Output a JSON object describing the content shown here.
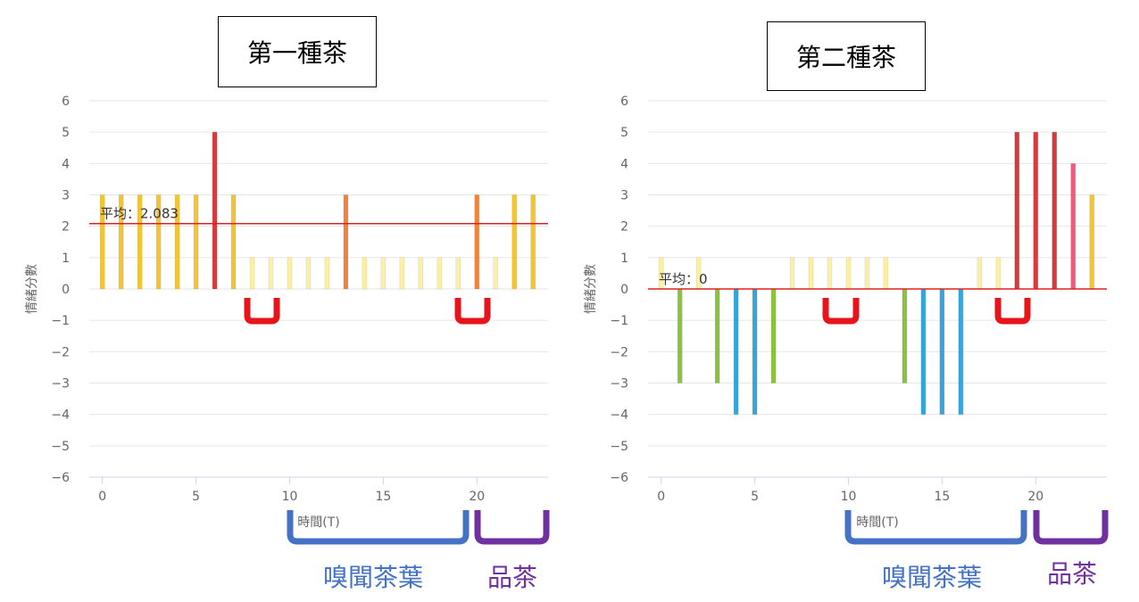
{
  "colors": {
    "very_positive": "#d93a3a",
    "pink": "#ee5c7c",
    "orange": "#f0843c",
    "yellow": "#f5c531",
    "pale_yellow": "#fdf0a6",
    "green": "#8cc33c",
    "blue": "#33a7db",
    "avg_line": "#e02020",
    "bracket_red": "#e8141c",
    "bracket_blue": "#4472c4",
    "bracket_purple": "#7030a0"
  },
  "chart_data": [
    {
      "type": "bar",
      "title": "第一種茶",
      "xlabel": "時間(T)",
      "ylabel": "情緒分數",
      "xlim": [
        -0.7,
        23.8
      ],
      "ylim": [
        -6,
        6
      ],
      "xticks": [
        0,
        5,
        10,
        15,
        20
      ],
      "yticks": [
        6,
        5,
        4,
        3,
        2,
        1,
        0,
        -1,
        -2,
        -3,
        -4,
        -5,
        -6
      ],
      "x": [
        0,
        1,
        2,
        3,
        4,
        5,
        6,
        7,
        8,
        9,
        10,
        11,
        12,
        13,
        14,
        15,
        16,
        17,
        18,
        19,
        20,
        21,
        22,
        23
      ],
      "values": [
        3,
        3,
        3,
        3,
        3,
        3,
        5,
        3,
        1,
        1,
        1,
        1,
        1,
        3,
        1,
        1,
        1,
        1,
        1,
        1,
        3,
        1,
        3,
        3
      ],
      "average": 2.083,
      "average_label": "平均：2.083",
      "phase_labels": [
        "嗅聞茶葉",
        "品茶"
      ]
    },
    {
      "type": "bar",
      "title": "第二種茶",
      "xlabel": "時間(T)",
      "ylabel": "情緒分數",
      "xlim": [
        -0.7,
        23.8
      ],
      "ylim": [
        -6,
        6
      ],
      "xticks": [
        0,
        5,
        10,
        15,
        20
      ],
      "yticks": [
        6,
        5,
        4,
        3,
        2,
        1,
        0,
        -1,
        -2,
        -3,
        -4,
        -5,
        -6
      ],
      "x": [
        0,
        1,
        2,
        3,
        4,
        5,
        6,
        7,
        8,
        9,
        10,
        11,
        12,
        13,
        14,
        15,
        16,
        17,
        18,
        19,
        20,
        21,
        22,
        23
      ],
      "values": [
        1,
        -3,
        1,
        -3,
        -4,
        -4,
        -3,
        1,
        1,
        1,
        1,
        1,
        1,
        -3,
        -4,
        -4,
        -4,
        1,
        1,
        5,
        5,
        5,
        4,
        3
      ],
      "average": 0,
      "average_label": "平均：0",
      "phase_labels": [
        "嗅聞茶葉",
        "品茶"
      ]
    }
  ]
}
